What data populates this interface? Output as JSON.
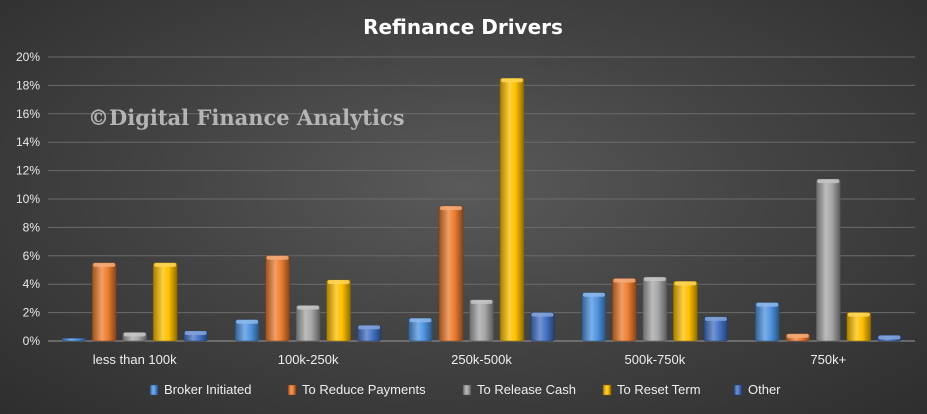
{
  "watermark": "©Digital Finance Analytics",
  "chart_data": {
    "type": "bar",
    "title": "Refinance Drivers",
    "xlabel": "",
    "ylabel": "",
    "ylim": [
      0,
      20
    ],
    "yticks": [
      "0%",
      "2%",
      "4%",
      "6%",
      "8%",
      "10%",
      "12%",
      "14%",
      "16%",
      "18%",
      "20%"
    ],
    "grid": true,
    "legend_position": "bottom",
    "categories": [
      "less than 100k",
      "100k-250k",
      "250k-500k",
      "500k-750k",
      "750k+"
    ],
    "series": [
      {
        "name": "Broker Initiated",
        "values": [
          0.2,
          1.5,
          1.6,
          3.4,
          2.7
        ],
        "color": "#4f93e0",
        "legend_icon": "bar-icon-blue"
      },
      {
        "name": "To Reduce Payments",
        "values": [
          5.5,
          6.0,
          9.5,
          4.4,
          0.5
        ],
        "color": "#ed7d31",
        "legend_icon": "bar-icon-orange"
      },
      {
        "name": "To Release Cash",
        "values": [
          0.6,
          2.5,
          2.9,
          4.5,
          11.4
        ],
        "color": "#a5a5a5",
        "legend_icon": "bar-icon-gray"
      },
      {
        "name": "To Reset Term",
        "values": [
          5.5,
          4.3,
          18.5,
          4.2,
          2.0
        ],
        "color": "#ffc000",
        "legend_icon": "bar-icon-gold"
      },
      {
        "name": "Other",
        "values": [
          0.7,
          1.1,
          2.0,
          1.7,
          0.4
        ],
        "color": "#4472c4",
        "legend_icon": "bar-icon-darkblue"
      }
    ]
  }
}
